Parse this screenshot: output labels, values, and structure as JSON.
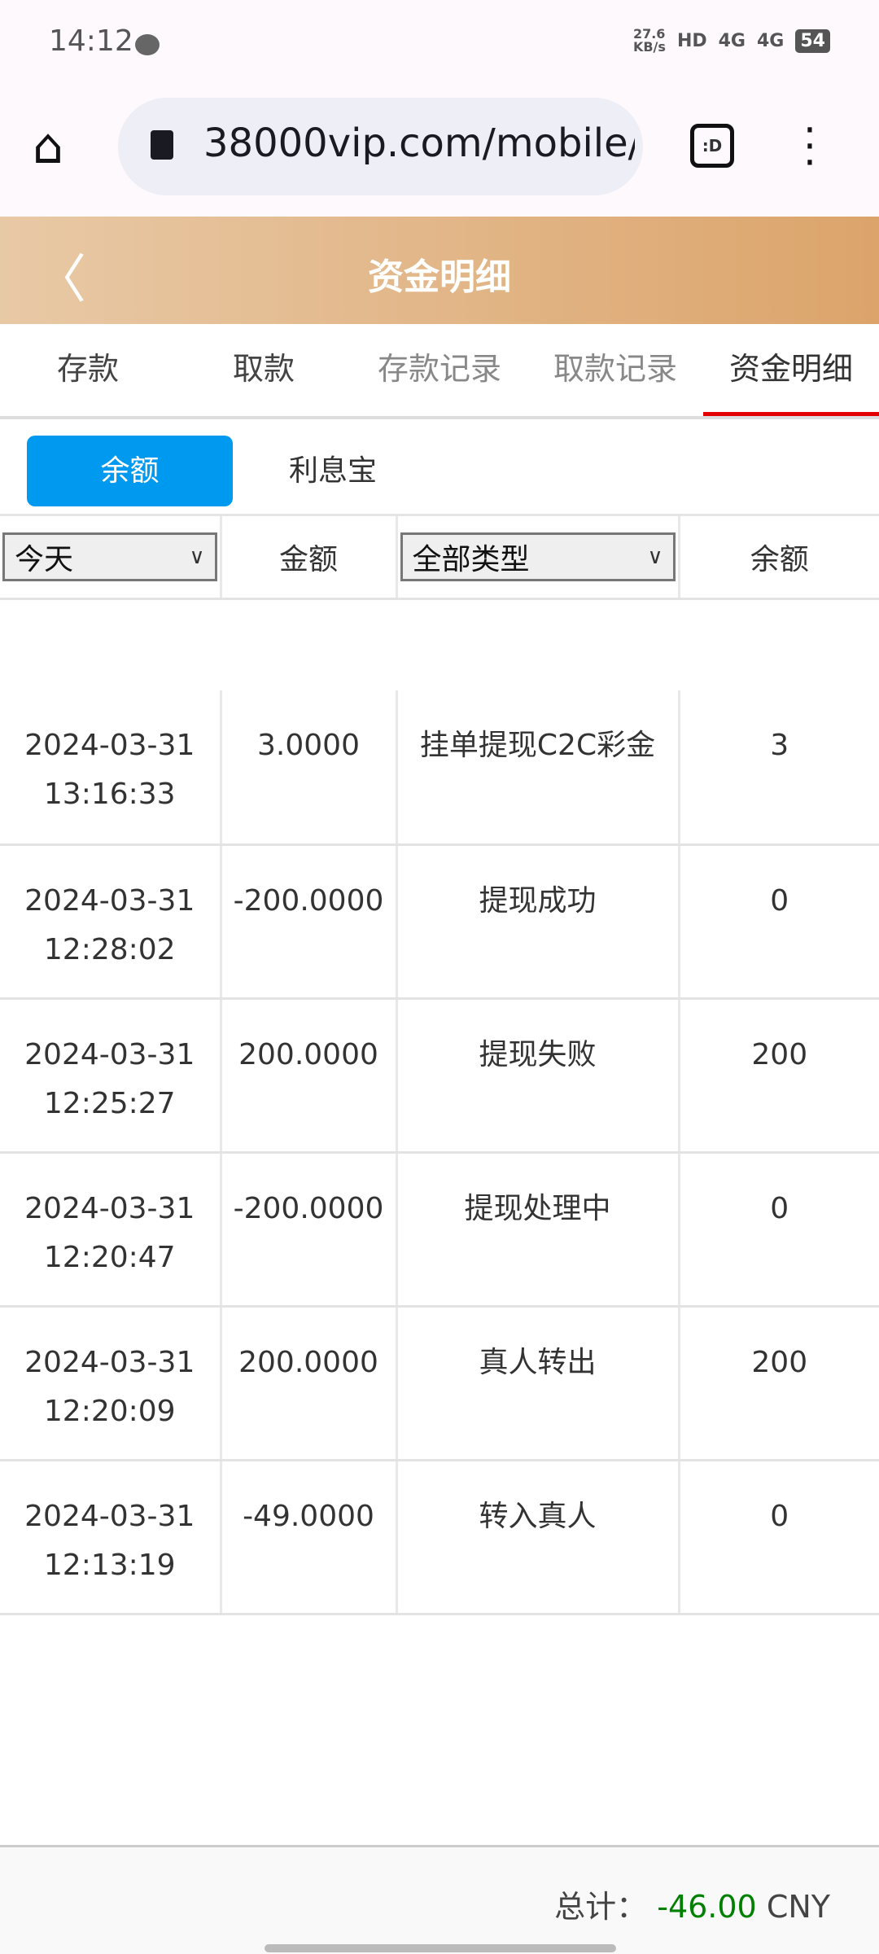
{
  "status_bar": {
    "time": "14:12",
    "net_speed": "27.6 KB/s",
    "network1": "4G",
    "network2": "4G",
    "battery": "54"
  },
  "browser": {
    "url": "38000vip.com/mobile/",
    "tab_icon": ":D"
  },
  "header": {
    "title": "资金明细"
  },
  "tabs": [
    {
      "label": "存款"
    },
    {
      "label": "取款"
    },
    {
      "label": "存款记录"
    },
    {
      "label": "取款记录"
    },
    {
      "label": "资金明细",
      "active": true
    }
  ],
  "subtabs": [
    {
      "label": "余额",
      "active": true
    },
    {
      "label": "利息宝"
    }
  ],
  "colors": {
    "accent": "#0099f0",
    "active_tab_underline": "#e30000",
    "total_value": "#008000"
  },
  "table": {
    "date_filter": "今天",
    "amount_header": "金额",
    "type_filter": "全部类型",
    "balance_header": "余额",
    "rows": [
      {
        "date": "2024-03-31",
        "time": "13:16:33",
        "amount": "3.0000",
        "type": "挂单提现C2C彩金",
        "balance": "3"
      },
      {
        "date": "2024-03-31",
        "time": "12:28:02",
        "amount": "-200.0000",
        "type": "提现成功",
        "balance": "0"
      },
      {
        "date": "2024-03-31",
        "time": "12:25:27",
        "amount": "200.0000",
        "type": "提现失败",
        "balance": "200"
      },
      {
        "date": "2024-03-31",
        "time": "12:20:47",
        "amount": "-200.0000",
        "type": "提现处理中",
        "balance": "0"
      },
      {
        "date": "2024-03-31",
        "time": "12:20:09",
        "amount": "200.0000",
        "type": "真人转出",
        "balance": "200"
      },
      {
        "date": "2024-03-31",
        "time": "12:13:19",
        "amount": "-49.0000",
        "type": "转入真人",
        "balance": "0"
      }
    ]
  },
  "footer": {
    "total_label": "总计：",
    "total_value": "-46.00",
    "currency": "CNY"
  }
}
